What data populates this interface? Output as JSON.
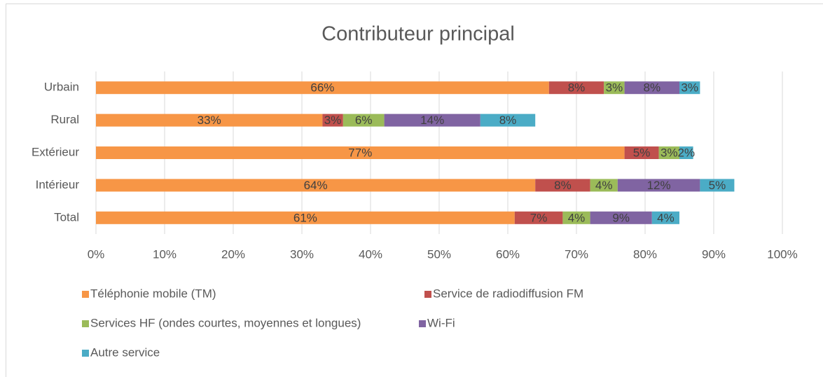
{
  "chart_data": {
    "type": "stacked-barh",
    "title": "Contributeur principal",
    "categories": [
      "Urbain",
      "Rural",
      "Extérieur",
      "Intérieur",
      "Total"
    ],
    "series": [
      {
        "name": "Téléphonie mobile (TM)",
        "color": "#f79646",
        "values": [
          66,
          33,
          77,
          64,
          61
        ],
        "value_labels": [
          "66%",
          "33%",
          "77%",
          "64%",
          "61%"
        ]
      },
      {
        "name": "Service de radiodiffusion FM",
        "color": "#c0504d",
        "values": [
          8,
          3,
          5,
          8,
          7
        ],
        "value_labels": [
          "8%",
          "3%",
          "5%",
          "8%",
          "7%"
        ]
      },
      {
        "name": "Services HF (ondes courtes, moyennes et longues)",
        "color": "#9bbb59",
        "values": [
          3,
          6,
          3,
          4,
          4
        ],
        "value_labels": [
          "3%",
          "6%",
          "3%",
          "4%",
          "4%"
        ]
      },
      {
        "name": "Wi-Fi",
        "color": "#8064a2",
        "values": [
          8,
          14,
          null,
          12,
          9
        ],
        "value_labels": [
          "8%",
          "14%",
          null,
          "12%",
          "9%"
        ]
      },
      {
        "name": "Autre service",
        "color": "#4bacc6",
        "values": [
          3,
          8,
          2,
          5,
          4
        ],
        "value_labels": [
          "3%",
          "8%",
          "2%",
          "5%",
          "4%"
        ]
      }
    ],
    "xlim": [
      0,
      100
    ],
    "xticks": [
      {
        "value": 0,
        "label": "0%"
      },
      {
        "value": 10,
        "label": "10%"
      },
      {
        "value": 20,
        "label": "20%"
      },
      {
        "value": 30,
        "label": "30%"
      },
      {
        "value": 40,
        "label": "40%"
      },
      {
        "value": 50,
        "label": "50%"
      },
      {
        "value": 60,
        "label": "60%"
      },
      {
        "value": 70,
        "label": "70%"
      },
      {
        "value": 80,
        "label": "80%"
      },
      {
        "value": 90,
        "label": "90%"
      },
      {
        "value": 100,
        "label": "100%"
      }
    ],
    "grid": true,
    "legend": "bottom"
  }
}
